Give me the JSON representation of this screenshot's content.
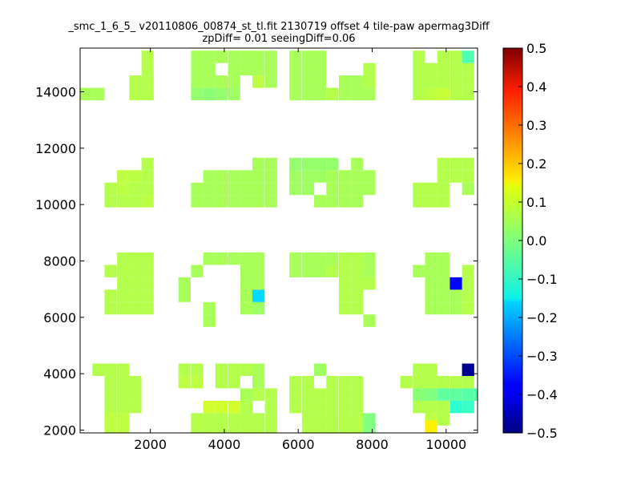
{
  "chart_data": {
    "type": "heatmap",
    "title_lines": [
      "_smc_1_6_5_ v20110806_00874_st_tl.fit 2130719 offset 4 tile-paw apermag3Diff",
      "zpDiff= 0.01 seeingDiff=0.06"
    ],
    "xlim": [
      100,
      10850
    ],
    "ylim": [
      1900,
      15550
    ],
    "x_ticks": [
      2000,
      4000,
      6000,
      8000,
      10000
    ],
    "y_ticks": [
      2000,
      4000,
      6000,
      8000,
      10000,
      12000,
      14000
    ],
    "x_tick_labels": [
      "2000",
      "4000",
      "6000",
      "8000",
      "10000"
    ],
    "y_tick_labels": [
      "2000",
      "4000",
      "6000",
      "8000",
      "10000",
      "12000",
      "14000"
    ],
    "colorbar": {
      "colormap": "jet",
      "range": [
        -0.5,
        0.5
      ],
      "ticks": [
        0.5,
        0.4,
        0.3,
        0.2,
        0.1,
        0.0,
        -0.1,
        -0.2,
        -0.3,
        -0.4,
        -0.5
      ],
      "tick_labels": [
        "0.5",
        "0.4",
        "0.3",
        "0.2",
        "0.1",
        "0.0",
        "−0.1",
        "−0.2",
        "−0.3",
        "−0.4",
        "−0.5"
      ]
    },
    "cell_size": [
      330,
      440
    ],
    "note_values": "cells given as [x_left, y_bottom, value] in data units",
    "cells": [
      [
        100,
        13700,
        0.04
      ],
      [
        430,
        13700,
        0.04
      ],
      [
        1430,
        13700,
        0.05
      ],
      [
        1760,
        13700,
        0.05
      ],
      [
        1430,
        14140,
        0.05
      ],
      [
        1760,
        14140,
        0.05
      ],
      [
        1760,
        14580,
        0.05
      ],
      [
        1760,
        15020,
        0.05
      ],
      [
        3100,
        13700,
        0.02
      ],
      [
        3430,
        13700,
        0.01
      ],
      [
        3760,
        13700,
        0.02
      ],
      [
        4100,
        13700,
        0.03
      ],
      [
        3100,
        14140,
        0.04
      ],
      [
        3430,
        14140,
        0.04
      ],
      [
        3760,
        14140,
        0.04
      ],
      [
        4100,
        14140,
        0.04
      ],
      [
        3100,
        14580,
        0.04
      ],
      [
        3430,
        14580,
        0.04
      ],
      [
        4100,
        14580,
        0.04
      ],
      [
        4430,
        14580,
        0.04
      ],
      [
        4760,
        14580,
        0.04
      ],
      [
        3100,
        15020,
        0.04
      ],
      [
        3430,
        15020,
        0.04
      ],
      [
        3760,
        15020,
        0.04
      ],
      [
        4100,
        15020,
        0.04
      ],
      [
        4430,
        15020,
        0.04
      ],
      [
        4760,
        15020,
        0.04
      ],
      [
        5100,
        15020,
        0.04
      ],
      [
        4760,
        14140,
        0.06
      ],
      [
        5100,
        14140,
        0.04
      ],
      [
        5100,
        14580,
        0.04
      ],
      [
        5760,
        13700,
        0.04
      ],
      [
        6100,
        13700,
        0.04
      ],
      [
        6430,
        13700,
        0.04
      ],
      [
        6760,
        13700,
        0.05
      ],
      [
        7100,
        13700,
        0.04
      ],
      [
        7430,
        13700,
        0.04
      ],
      [
        7760,
        13700,
        0.04
      ],
      [
        5760,
        14140,
        0.04
      ],
      [
        6100,
        14140,
        0.04
      ],
      [
        6430,
        14140,
        0.04
      ],
      [
        7100,
        14140,
        0.04
      ],
      [
        7430,
        14140,
        0.04
      ],
      [
        7760,
        14140,
        0.05
      ],
      [
        5760,
        14580,
        0.04
      ],
      [
        6100,
        14580,
        0.04
      ],
      [
        6430,
        14580,
        0.04
      ],
      [
        7760,
        14580,
        0.05
      ],
      [
        5760,
        15020,
        0.04
      ],
      [
        6100,
        15020,
        0.04
      ],
      [
        6430,
        15020,
        0.04
      ],
      [
        9100,
        13700,
        0.05
      ],
      [
        9430,
        13700,
        0.06
      ],
      [
        9760,
        13700,
        0.07
      ],
      [
        10100,
        13700,
        0.05
      ],
      [
        10430,
        13700,
        0.05
      ],
      [
        9100,
        14140,
        0.05
      ],
      [
        9430,
        14140,
        0.05
      ],
      [
        9760,
        14140,
        0.05
      ],
      [
        10100,
        14140,
        0.05
      ],
      [
        10430,
        14140,
        0.05
      ],
      [
        9100,
        14580,
        0.05
      ],
      [
        9430,
        14580,
        0.05
      ],
      [
        9760,
        14580,
        0.05
      ],
      [
        10100,
        14580,
        0.05
      ],
      [
        10430,
        14580,
        0.05
      ],
      [
        9100,
        15020,
        0.05
      ],
      [
        9760,
        15020,
        0.05
      ],
      [
        10100,
        15020,
        0.05
      ],
      [
        10430,
        15020,
        -0.05
      ],
      [
        760,
        9900,
        0.05
      ],
      [
        1100,
        9900,
        0.05
      ],
      [
        1430,
        9900,
        0.05
      ],
      [
        1760,
        9900,
        0.06
      ],
      [
        760,
        10340,
        0.05
      ],
      [
        1100,
        10340,
        0.06
      ],
      [
        1430,
        10340,
        0.05
      ],
      [
        1760,
        10340,
        0.05
      ],
      [
        1100,
        10780,
        0.06
      ],
      [
        1430,
        10780,
        0.06
      ],
      [
        1760,
        10780,
        0.05
      ],
      [
        1760,
        11220,
        0.05
      ],
      [
        3100,
        9900,
        0.04
      ],
      [
        3430,
        9900,
        0.04
      ],
      [
        3760,
        9900,
        0.04
      ],
      [
        4100,
        9900,
        0.04
      ],
      [
        4430,
        9900,
        0.04
      ],
      [
        4760,
        9900,
        0.04
      ],
      [
        5100,
        9900,
        0.04
      ],
      [
        3100,
        10340,
        0.04
      ],
      [
        3430,
        10340,
        0.04
      ],
      [
        3760,
        10340,
        0.04
      ],
      [
        4100,
        10340,
        0.04
      ],
      [
        4430,
        10340,
        0.04
      ],
      [
        4760,
        10340,
        0.04
      ],
      [
        5100,
        10340,
        0.04
      ],
      [
        3430,
        10780,
        0.04
      ],
      [
        3760,
        10780,
        0.04
      ],
      [
        4100,
        10780,
        0.04
      ],
      [
        4430,
        10780,
        0.04
      ],
      [
        4760,
        10780,
        0.04
      ],
      [
        5100,
        10780,
        0.04
      ],
      [
        4760,
        11220,
        0.04
      ],
      [
        5100,
        11220,
        0.04
      ],
      [
        5760,
        10340,
        0.03
      ],
      [
        6100,
        10340,
        0.03
      ],
      [
        6760,
        10340,
        0.04
      ],
      [
        7100,
        10340,
        0.04
      ],
      [
        7430,
        10340,
        0.04
      ],
      [
        7760,
        10340,
        0.04
      ],
      [
        5760,
        10780,
        0.03
      ],
      [
        6100,
        10780,
        0.03
      ],
      [
        6430,
        10780,
        0.03
      ],
      [
        6760,
        10780,
        0.04
      ],
      [
        7100,
        10780,
        0.04
      ],
      [
        7430,
        10780,
        0.04
      ],
      [
        7760,
        10780,
        0.04
      ],
      [
        5760,
        11220,
        0.02
      ],
      [
        6100,
        11220,
        0.02
      ],
      [
        6430,
        11220,
        0.02
      ],
      [
        6760,
        11220,
        0.02
      ],
      [
        7430,
        11220,
        0.04
      ],
      [
        6430,
        9900,
        0.04
      ],
      [
        6760,
        9900,
        0.04
      ],
      [
        7100,
        9900,
        0.04
      ],
      [
        7430,
        9900,
        0.04
      ],
      [
        9100,
        9900,
        0.05
      ],
      [
        9430,
        9900,
        0.05
      ],
      [
        9760,
        9900,
        0.05
      ],
      [
        9100,
        10340,
        0.05
      ],
      [
        9430,
        10340,
        0.05
      ],
      [
        9760,
        10340,
        0.05
      ],
      [
        10430,
        10340,
        0.04
      ],
      [
        9760,
        10780,
        0.05
      ],
      [
        10100,
        10780,
        0.05
      ],
      [
        10430,
        10780,
        0.05
      ],
      [
        9760,
        11220,
        0.05
      ],
      [
        10100,
        11220,
        0.05
      ],
      [
        10430,
        11220,
        0.05
      ],
      [
        760,
        6100,
        0.05
      ],
      [
        1100,
        6100,
        0.05
      ],
      [
        1430,
        6100,
        0.05
      ],
      [
        1760,
        6100,
        0.05
      ],
      [
        760,
        6540,
        0.05
      ],
      [
        1100,
        6540,
        0.05
      ],
      [
        1430,
        6540,
        0.05
      ],
      [
        1760,
        6540,
        0.05
      ],
      [
        1100,
        6980,
        0.05
      ],
      [
        1430,
        6980,
        0.05
      ],
      [
        1760,
        6980,
        0.05
      ],
      [
        760,
        7420,
        0.05
      ],
      [
        1100,
        7420,
        0.05
      ],
      [
        1430,
        7420,
        0.05
      ],
      [
        1760,
        7420,
        0.05
      ],
      [
        1100,
        7860,
        0.05
      ],
      [
        1430,
        7860,
        0.05
      ],
      [
        1760,
        7860,
        0.05
      ],
      [
        2760,
        6540,
        0.04
      ],
      [
        2760,
        6980,
        0.04
      ],
      [
        3100,
        7420,
        0.04
      ],
      [
        3430,
        7860,
        0.04
      ],
      [
        3760,
        7860,
        0.04
      ],
      [
        4100,
        7860,
        0.04
      ],
      [
        3430,
        5660,
        0.04
      ],
      [
        3430,
        6100,
        0.04
      ],
      [
        4430,
        6100,
        0.04
      ],
      [
        4760,
        6100,
        0.03
      ],
      [
        4430,
        6540,
        0.04
      ],
      [
        4760,
        6540,
        -0.16
      ],
      [
        4430,
        6980,
        0.04
      ],
      [
        4760,
        6980,
        0.04
      ],
      [
        4430,
        7420,
        0.04
      ],
      [
        4760,
        7420,
        0.04
      ],
      [
        4430,
        7860,
        0.04
      ],
      [
        4760,
        7860,
        0.04
      ],
      [
        5760,
        7420,
        0.04
      ],
      [
        6100,
        7420,
        0.04
      ],
      [
        6430,
        7420,
        0.04
      ],
      [
        6760,
        7420,
        0.05
      ],
      [
        7100,
        7420,
        0.05
      ],
      [
        7430,
        7420,
        0.05
      ],
      [
        7760,
        7420,
        0.04
      ],
      [
        5760,
        7860,
        0.04
      ],
      [
        6100,
        7860,
        0.04
      ],
      [
        6430,
        7860,
        0.04
      ],
      [
        6760,
        7860,
        0.04
      ],
      [
        7100,
        7860,
        0.05
      ],
      [
        7430,
        7860,
        0.05
      ],
      [
        7760,
        7860,
        0.04
      ],
      [
        7100,
        6980,
        0.05
      ],
      [
        7430,
        6980,
        0.05
      ],
      [
        7760,
        6980,
        0.05
      ],
      [
        7100,
        6540,
        0.05
      ],
      [
        7430,
        6540,
        0.05
      ],
      [
        7100,
        6100,
        0.05
      ],
      [
        7430,
        6100,
        0.05
      ],
      [
        7760,
        5660,
        0.04
      ],
      [
        9100,
        7420,
        0.04
      ],
      [
        9430,
        7420,
        0.04
      ],
      [
        9760,
        7420,
        0.04
      ],
      [
        10430,
        7420,
        0.05
      ],
      [
        9430,
        7860,
        0.04
      ],
      [
        9760,
        7860,
        0.04
      ],
      [
        9430,
        6980,
        0.04
      ],
      [
        9760,
        6980,
        0.04
      ],
      [
        10100,
        6980,
        0.04
      ],
      [
        10430,
        6980,
        0.05
      ],
      [
        9430,
        6540,
        0.04
      ],
      [
        9760,
        6540,
        0.04
      ],
      [
        10100,
        6540,
        0.04
      ],
      [
        10430,
        6540,
        0.05
      ],
      [
        9430,
        6100,
        0.04
      ],
      [
        9760,
        6100,
        0.04
      ],
      [
        10100,
        6100,
        0.04
      ],
      [
        10430,
        6100,
        0.05
      ],
      [
        10100,
        6980,
        -0.37
      ],
      [
        430,
        3920,
        0.05
      ],
      [
        760,
        3920,
        0.05
      ],
      [
        1100,
        3920,
        0.05
      ],
      [
        760,
        3480,
        0.05
      ],
      [
        1100,
        3480,
        0.05
      ],
      [
        1430,
        3480,
        0.05
      ],
      [
        760,
        3040,
        0.05
      ],
      [
        1100,
        3040,
        0.05
      ],
      [
        1430,
        3040,
        0.05
      ],
      [
        760,
        2600,
        0.05
      ],
      [
        1100,
        2600,
        0.05
      ],
      [
        1430,
        2600,
        0.05
      ],
      [
        760,
        2160,
        0.06
      ],
      [
        1100,
        2160,
        0.06
      ],
      [
        760,
        1900,
        0.06
      ],
      [
        1100,
        1900,
        0.06
      ],
      [
        2760,
        3480,
        0.06
      ],
      [
        3100,
        3480,
        0.06
      ],
      [
        2760,
        3920,
        0.05
      ],
      [
        3100,
        3920,
        0.05
      ],
      [
        3760,
        3920,
        0.05
      ],
      [
        4100,
        3920,
        0.05
      ],
      [
        4430,
        3920,
        0.05
      ],
      [
        4760,
        3920,
        0.04
      ],
      [
        3760,
        3480,
        0.05
      ],
      [
        4100,
        3480,
        0.05
      ],
      [
        4760,
        3480,
        0.04
      ],
      [
        4430,
        3040,
        0.04
      ],
      [
        4760,
        3040,
        0.05
      ],
      [
        5100,
        3040,
        0.05
      ],
      [
        4430,
        2600,
        0.05
      ],
      [
        5100,
        2600,
        0.05
      ],
      [
        3430,
        2600,
        0.08
      ],
      [
        3760,
        2600,
        0.08
      ],
      [
        4100,
        2600,
        0.08
      ],
      [
        3100,
        2160,
        0.05
      ],
      [
        3430,
        2160,
        0.05
      ],
      [
        3760,
        2160,
        0.05
      ],
      [
        4100,
        2160,
        0.05
      ],
      [
        4430,
        2160,
        0.05
      ],
      [
        4760,
        2160,
        0.05
      ],
      [
        5100,
        2160,
        0.05
      ],
      [
        3100,
        1900,
        0.05
      ],
      [
        3430,
        1900,
        0.05
      ],
      [
        3760,
        1900,
        0.05
      ],
      [
        4100,
        1900,
        0.05
      ],
      [
        4430,
        1900,
        0.05
      ],
      [
        4760,
        1900,
        0.05
      ],
      [
        5100,
        1900,
        0.05
      ],
      [
        5760,
        3480,
        0.05
      ],
      [
        6100,
        3480,
        0.05
      ],
      [
        6760,
        3480,
        0.05
      ],
      [
        7100,
        3480,
        0.05
      ],
      [
        7430,
        3480,
        0.05
      ],
      [
        5760,
        3040,
        0.05
      ],
      [
        6100,
        3040,
        0.05
      ],
      [
        6430,
        3040,
        0.05
      ],
      [
        6760,
        3040,
        0.05
      ],
      [
        7100,
        3040,
        0.05
      ],
      [
        7430,
        3040,
        0.05
      ],
      [
        5760,
        2600,
        0.05
      ],
      [
        6100,
        2600,
        0.05
      ],
      [
        6430,
        2600,
        0.05
      ],
      [
        6760,
        2600,
        0.05
      ],
      [
        7100,
        2600,
        0.05
      ],
      [
        7430,
        2600,
        0.05
      ],
      [
        6100,
        2160,
        0.05
      ],
      [
        6430,
        2160,
        0.05
      ],
      [
        6760,
        2160,
        0.05
      ],
      [
        7100,
        2160,
        0.05
      ],
      [
        7430,
        2160,
        0.05
      ],
      [
        7760,
        2160,
        0.0
      ],
      [
        6100,
        1900,
        0.05
      ],
      [
        6430,
        1900,
        0.05
      ],
      [
        6760,
        1900,
        0.05
      ],
      [
        7100,
        1900,
        0.05
      ],
      [
        7430,
        1900,
        0.05
      ],
      [
        7760,
        1900,
        0.0
      ],
      [
        6430,
        3920,
        0.03
      ],
      [
        8760,
        3480,
        0.05
      ],
      [
        9100,
        3920,
        0.05
      ],
      [
        9430,
        3920,
        0.05
      ],
      [
        9100,
        3480,
        0.05
      ],
      [
        9430,
        3480,
        0.05
      ],
      [
        9760,
        3480,
        0.05
      ],
      [
        9100,
        3040,
        0.01
      ],
      [
        9430,
        3040,
        0.0
      ],
      [
        9760,
        3040,
        -0.03
      ],
      [
        10100,
        3040,
        -0.03
      ],
      [
        10430,
        3040,
        -0.04
      ],
      [
        10760,
        3040,
        -0.04
      ],
      [
        9100,
        2600,
        0.05
      ],
      [
        9430,
        2600,
        0.05
      ],
      [
        9760,
        2600,
        0.05
      ],
      [
        10100,
        2600,
        -0.08
      ],
      [
        10430,
        2600,
        -0.07
      ],
      [
        9430,
        2160,
        0.06
      ],
      [
        9760,
        2160,
        0.05
      ],
      [
        9430,
        1900,
        0.14
      ],
      [
        10100,
        3480,
        0.05
      ],
      [
        10430,
        3480,
        0.05
      ],
      [
        10430,
        3920,
        -0.48
      ]
    ]
  }
}
